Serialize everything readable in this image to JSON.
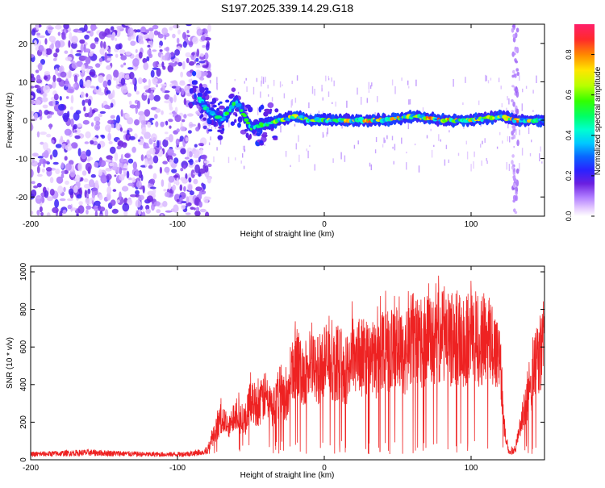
{
  "title": "S197.2025.339.14.29.G18",
  "colors": {
    "series": "#ee2222",
    "heat_low": "#b07cff",
    "heat_high": "#ff1f6a"
  },
  "chart_data": [
    {
      "type": "heatmap",
      "name": "spectrogram",
      "xlabel": "Height of straight line (km)",
      "ylabel": "Frequency (Hz)",
      "xlim": [
        -200,
        150
      ],
      "ylim": [
        -25,
        25
      ],
      "x_ticks": [
        -200,
        -100,
        0,
        100
      ],
      "y_ticks": [
        -20,
        -10,
        0,
        10,
        20
      ],
      "colorbar": {
        "label": "Normalized spectral amplitude",
        "range": [
          0.0,
          0.95
        ],
        "ticks": [
          "0.0",
          "0.2",
          "0.4",
          "0.6",
          "0.8"
        ],
        "tick_values": [
          0.0,
          0.2,
          0.4,
          0.6,
          0.8
        ]
      },
      "ridge": {
        "description": "dominant frequency track",
        "x": [
          -200,
          -90,
          -80,
          -70,
          -60,
          -50,
          -40,
          -30,
          -20,
          -10,
          0,
          20,
          40,
          60,
          80,
          100,
          120,
          130,
          140,
          150
        ],
        "freq": [
          0,
          8,
          3,
          0,
          5,
          -2,
          -1,
          0,
          1,
          0,
          0,
          0,
          0,
          1,
          0,
          0,
          1,
          0,
          0,
          0
        ],
        "amplitude": [
          0.1,
          0.2,
          0.3,
          0.35,
          0.4,
          0.45,
          0.4,
          0.5,
          0.6,
          0.5,
          0.6,
          0.75,
          0.75,
          0.7,
          0.8,
          0.75,
          0.6,
          0.8,
          0.7,
          0.6
        ]
      }
    },
    {
      "type": "line",
      "name": "snr",
      "xlabel": "Height of straight line (km)",
      "ylabel": "SNR (10 * v/v)",
      "xlim": [
        -200,
        150
      ],
      "ylim": [
        0,
        1030
      ],
      "x_ticks": [
        -200,
        -100,
        0,
        100
      ],
      "y_ticks": [
        0,
        200,
        400,
        600,
        800,
        1000
      ],
      "series": [
        {
          "name": "SNR",
          "x": [
            -200,
            -180,
            -160,
            -140,
            -120,
            -100,
            -90,
            -80,
            -75,
            -70,
            -65,
            -60,
            -55,
            -50,
            -45,
            -40,
            -35,
            -30,
            -25,
            -20,
            -15,
            -10,
            -5,
            0,
            5,
            10,
            15,
            20,
            25,
            30,
            35,
            40,
            45,
            50,
            55,
            60,
            65,
            70,
            75,
            80,
            85,
            90,
            95,
            100,
            105,
            110,
            115,
            120,
            123,
            126,
            130,
            135,
            140,
            145,
            150
          ],
          "y": [
            30,
            35,
            40,
            35,
            30,
            30,
            35,
            50,
            150,
            250,
            180,
            300,
            200,
            350,
            320,
            380,
            300,
            420,
            350,
            600,
            500,
            550,
            520,
            600,
            550,
            580,
            520,
            650,
            600,
            620,
            580,
            680,
            640,
            650,
            620,
            720,
            680,
            700,
            680,
            760,
            700,
            730,
            680,
            800,
            700,
            720,
            680,
            600,
            150,
            40,
            60,
            250,
            400,
            600,
            700
          ]
        }
      ]
    }
  ]
}
